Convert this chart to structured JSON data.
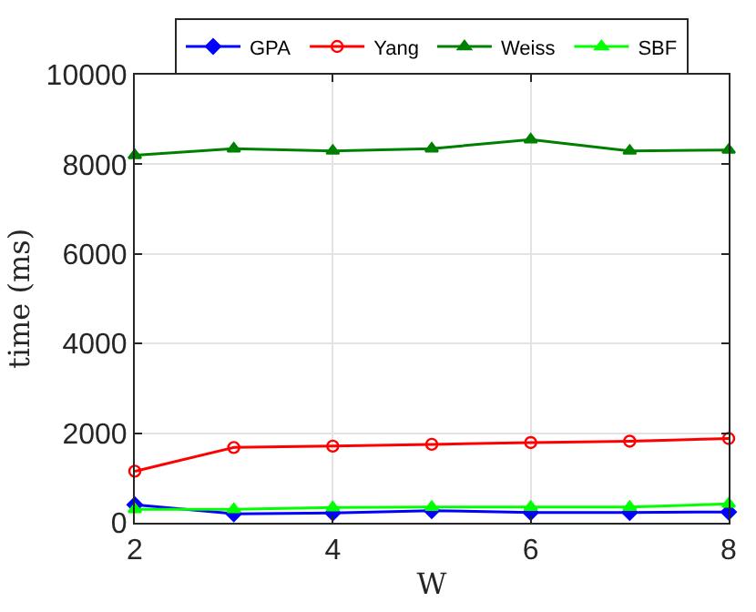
{
  "chart_data": {
    "type": "line",
    "xlabel": "W",
    "ylabel": "time (ms)",
    "x": [
      2,
      3,
      4,
      5,
      6,
      7,
      8
    ],
    "xlim": [
      2,
      8
    ],
    "xticks": [
      2,
      4,
      6,
      8
    ],
    "ylim": [
      0,
      10000
    ],
    "yticks": [
      0,
      2000,
      4000,
      6000,
      8000,
      10000
    ],
    "grid": true,
    "legend": "top",
    "line_style": "solid",
    "series": [
      {
        "name": "GPA",
        "color": "#0000ff",
        "marker": "diamond",
        "values": [
          400,
          200,
          220,
          270,
          230,
          230,
          240
        ]
      },
      {
        "name": "Yang",
        "color": "#ff0000",
        "marker": "circle",
        "values": [
          1150,
          1680,
          1710,
          1750,
          1790,
          1820,
          1880
        ]
      },
      {
        "name": "Weiss",
        "color": "#008000",
        "marker": "triangle",
        "values": [
          8200,
          8350,
          8300,
          8350,
          8550,
          8300,
          8320
        ]
      },
      {
        "name": "SBF",
        "color": "#00ff00",
        "marker": "triangle",
        "values": [
          300,
          300,
          340,
          350,
          350,
          350,
          420
        ]
      }
    ]
  }
}
